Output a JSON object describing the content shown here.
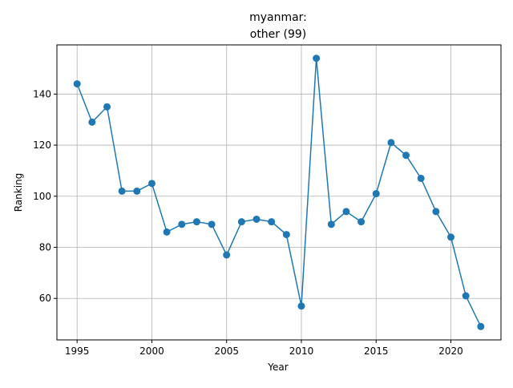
{
  "chart_data": {
    "type": "line",
    "title": [
      "myanmar:",
      "other (99)"
    ],
    "xlabel": "Year",
    "ylabel": "Ranking",
    "grid": true,
    "xlim": [
      1993.65,
      2023.35
    ],
    "ylim": [
      43.75,
      159.25
    ],
    "xticks": [
      1995,
      2000,
      2005,
      2010,
      2015,
      2020
    ],
    "yticks": [
      60,
      80,
      100,
      120,
      140
    ],
    "series": [
      {
        "color": "#1f77b4",
        "x": [
          1995,
          1996,
          1997,
          1998,
          1999,
          2000,
          2001,
          2002,
          2003,
          2004,
          2005,
          2006,
          2007,
          2008,
          2009,
          2010,
          2011,
          2012,
          2013,
          2014,
          2015,
          2016,
          2017,
          2018,
          2019,
          2020,
          2021,
          2022
        ],
        "y": [
          144,
          129,
          135,
          102,
          102,
          105,
          86,
          89,
          90,
          89,
          77,
          90,
          91,
          90,
          85,
          57,
          154,
          89,
          94,
          90,
          101,
          121,
          116,
          107,
          94,
          84,
          61,
          49
        ]
      }
    ]
  }
}
